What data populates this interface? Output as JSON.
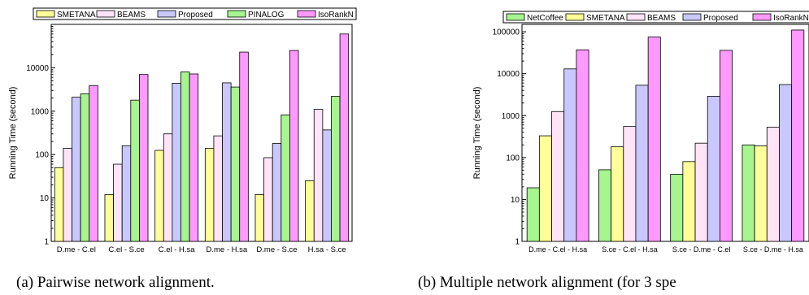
{
  "chart_data": [
    {
      "type": "bar",
      "caption": "(a) Pairwise network alignment.",
      "ylabel": "Running Time (second)",
      "xlabel": "",
      "yscale": "log",
      "ylim": [
        1,
        100000
      ],
      "yticks": [
        "1",
        "10",
        "100",
        "1000",
        "10000"
      ],
      "legend_position": "top",
      "grid": false,
      "categories": [
        "D.me - C.el",
        "C.el - S.ce",
        "C.el - H.sa",
        "D.me - H.sa",
        "D.me - S.ce",
        "H.sa - S.ce"
      ],
      "series": [
        {
          "name": "SMETANA",
          "color": "#ffff99",
          "values": [
            50,
            12,
            125,
            140,
            12,
            25
          ]
        },
        {
          "name": "BEAMS",
          "color": "#ffe3f7",
          "values": [
            140,
            60,
            300,
            270,
            85,
            1100
          ]
        },
        {
          "name": "Proposed",
          "color": "#c8c8ff",
          "values": [
            2100,
            160,
            4400,
            4500,
            180,
            370
          ]
        },
        {
          "name": "PINALOG",
          "color": "#a6f58f",
          "values": [
            2500,
            1800,
            8000,
            3600,
            820,
            2200
          ]
        },
        {
          "name": "IsoRankN",
          "color": "#ff99ff",
          "values": [
            3900,
            7000,
            7200,
            23000,
            25000,
            60000
          ]
        }
      ]
    },
    {
      "type": "bar",
      "caption": "(b) Multiple network alignment (for 3 spe",
      "ylabel": "Running Time (second)",
      "xlabel": "",
      "yscale": "log",
      "ylim": [
        1,
        150000
      ],
      "yticks": [
        "1",
        "10",
        "100",
        "1000",
        "10000",
        "100000"
      ],
      "legend_position": "top",
      "grid": false,
      "categories": [
        "D.me - C.el - H.sa",
        "S.ce - C.el - H.sa",
        "S.ce - D.me - C.el",
        "S.ce - D.me - H.sa"
      ],
      "series": [
        {
          "name": "NetCoffee",
          "color": "#a6f58f",
          "values": [
            19,
            51,
            40,
            200
          ]
        },
        {
          "name": "SMETANA",
          "color": "#ffff99",
          "values": [
            330,
            180,
            80,
            190
          ]
        },
        {
          "name": "BEAMS",
          "color": "#ffe3f7",
          "values": [
            1250,
            550,
            220,
            530
          ]
        },
        {
          "name": "Proposed",
          "color": "#c8c8ff",
          "values": [
            13000,
            5300,
            2900,
            5500
          ]
        },
        {
          "name": "IsoRankN",
          "color": "#ff99ff",
          "values": [
            37000,
            75000,
            36000,
            110000
          ]
        }
      ]
    }
  ]
}
